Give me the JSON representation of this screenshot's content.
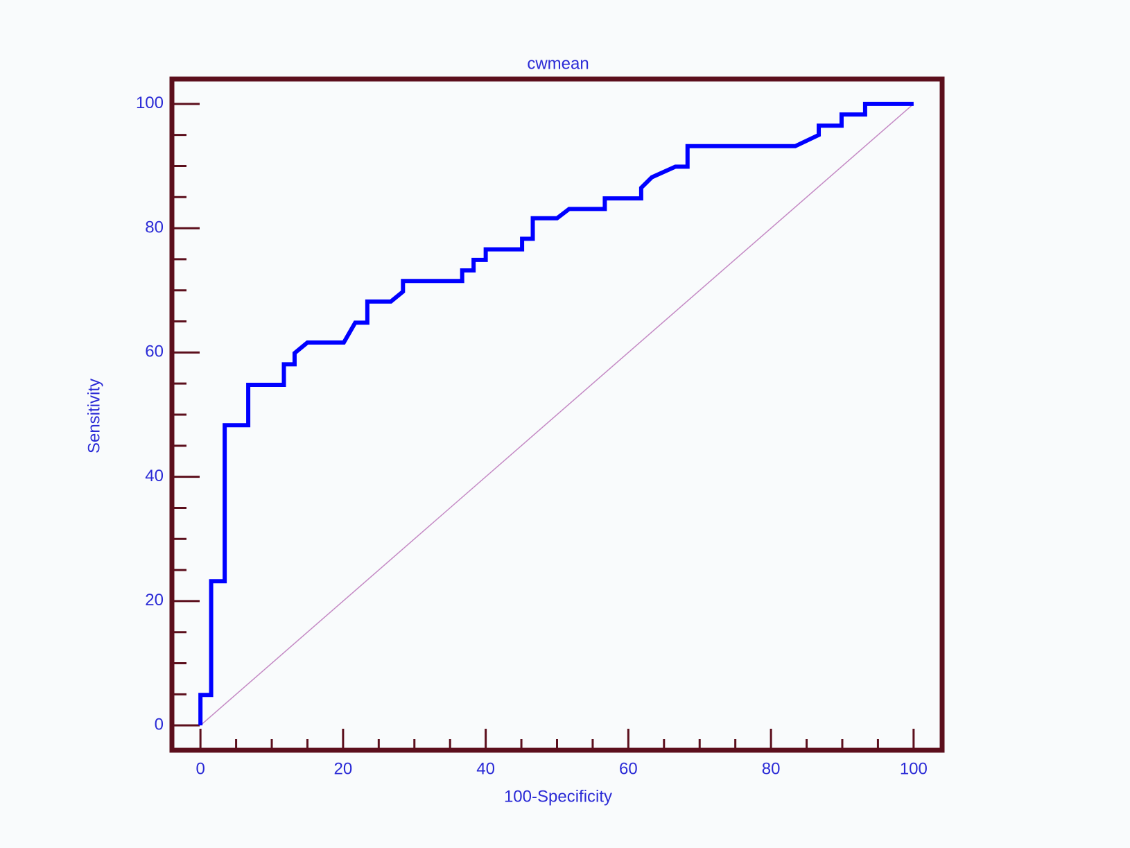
{
  "chart_data": {
    "type": "line",
    "title": "cwmean",
    "x_label": "100-Specificity",
    "y_label": "Sensitivity",
    "xlim": [
      -4,
      104
    ],
    "ylim": [
      -4,
      104
    ],
    "xticks": [
      0,
      20,
      40,
      60,
      80,
      100
    ],
    "yticks": [
      0,
      20,
      40,
      60,
      80,
      100
    ],
    "xminorticks": [
      5,
      10,
      15,
      25,
      30,
      35,
      45,
      50,
      55,
      65,
      70,
      75,
      85,
      90,
      95
    ],
    "yminorticks": [
      5,
      10,
      15,
      25,
      30,
      35,
      45,
      50,
      55,
      65,
      70,
      75,
      85,
      90,
      95
    ],
    "frame_color": "#5c0f1c",
    "series": [
      {
        "color": "#0000ff",
        "x": [
          0,
          0,
          1.5,
          1.5,
          3.4,
          3.4,
          6.7,
          6.7,
          11.7,
          11.7,
          13.2,
          13.2,
          15.0,
          20.1,
          21.7,
          23.4,
          23.4,
          26.7,
          28.4,
          28.4,
          36.7,
          36.7,
          38.3,
          38.3,
          40.0,
          40.0,
          45.1,
          45.1,
          46.6,
          46.6,
          50.0,
          51.7,
          56.7,
          56.7,
          61.8,
          61.8,
          63.3,
          66.6,
          68.3,
          68.3,
          83.4,
          86.7,
          86.7,
          89.9,
          89.9,
          93.2,
          93.2,
          100
        ],
        "values": [
          0,
          4.9,
          4.9,
          23.2,
          23.2,
          48.3,
          48.3,
          54.8,
          54.8,
          58.1,
          58.1,
          59.9,
          61.6,
          61.6,
          64.8,
          64.8,
          68.2,
          68.2,
          69.8,
          71.5,
          71.5,
          73.2,
          73.2,
          74.9,
          74.9,
          76.6,
          76.6,
          78.3,
          78.3,
          81.6,
          81.6,
          83.1,
          83.1,
          84.8,
          84.8,
          86.5,
          88.2,
          89.9,
          89.9,
          93.2,
          93.2,
          95.0,
          96.5,
          96.5,
          98.3,
          98.3,
          100,
          100
        ]
      },
      {
        "color": "#c489c4",
        "x": [
          0,
          100
        ],
        "values": [
          0,
          100
        ]
      }
    ]
  }
}
